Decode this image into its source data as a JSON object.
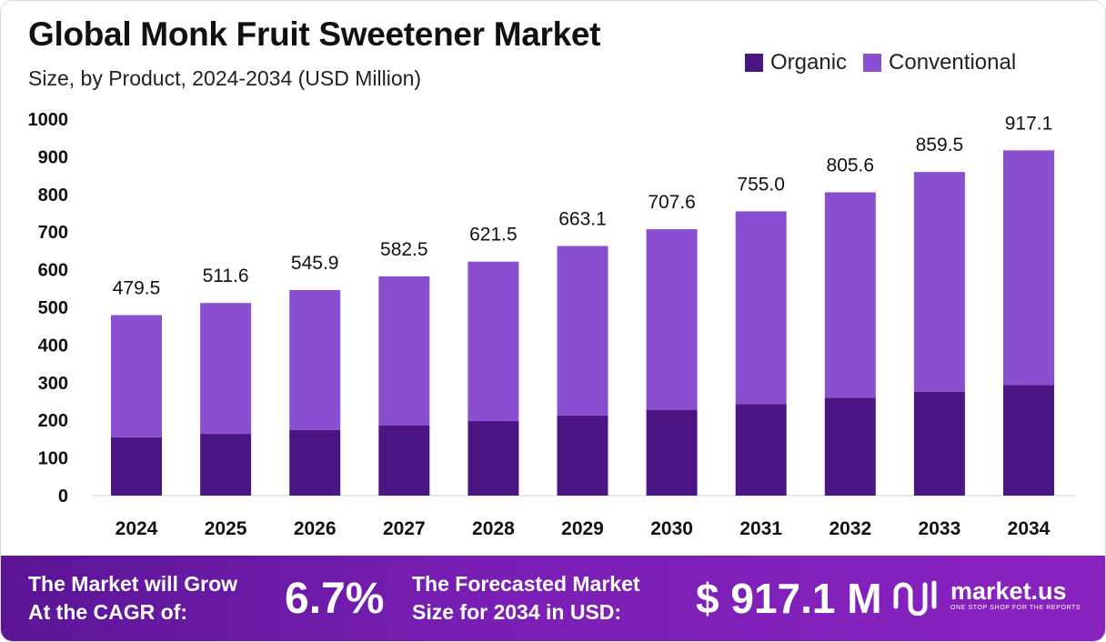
{
  "header": {
    "title": "Global Monk Fruit Sweetener Market",
    "subtitle": "Size, by Product, 2024-2034 (USD Million)"
  },
  "legend": [
    {
      "label": "Organic",
      "color": "#4b1684"
    },
    {
      "label": "Conventional",
      "color": "#8a4fd0"
    }
  ],
  "chart_data": {
    "type": "bar",
    "stacked": true,
    "categories": [
      "2024",
      "2025",
      "2026",
      "2027",
      "2028",
      "2029",
      "2030",
      "2031",
      "2032",
      "2033",
      "2034"
    ],
    "series": [
      {
        "name": "Organic",
        "color": "#4b1684",
        "values": [
          155,
          164,
          174,
          186,
          198,
          213,
          228,
          243,
          260,
          276,
          294
        ]
      },
      {
        "name": "Conventional",
        "color": "#8a4fd0",
        "values": [
          324.5,
          347.6,
          371.9,
          396.5,
          423.5,
          450.1,
          479.6,
          512.0,
          545.6,
          583.5,
          623.1
        ]
      }
    ],
    "totals": [
      479.5,
      511.6,
      545.9,
      582.5,
      621.5,
      663.1,
      707.6,
      755.0,
      805.6,
      859.5,
      917.1
    ],
    "total_labels": [
      "479.5",
      "511.6",
      "545.9",
      "582.5",
      "621.5",
      "663.1",
      "707.6",
      "755.0",
      "805.6",
      "859.5",
      "917.1"
    ],
    "yticks": [
      0,
      100,
      200,
      300,
      400,
      500,
      600,
      700,
      800,
      900,
      1000
    ],
    "ylim": [
      0,
      1000
    ],
    "grid": false
  },
  "footer": {
    "cagr_text_line1": "The Market will Grow",
    "cagr_text_line2": "At the CAGR of:",
    "cagr_value": "6.7%",
    "forecast_text_line1": "The Forecasted Market",
    "forecast_text_line2": "Size for 2034 in USD:",
    "forecast_value": "$ 917.1 M",
    "logo_name": "market.us",
    "logo_tagline": "ONE STOP SHOP FOR THE REPORTS"
  }
}
